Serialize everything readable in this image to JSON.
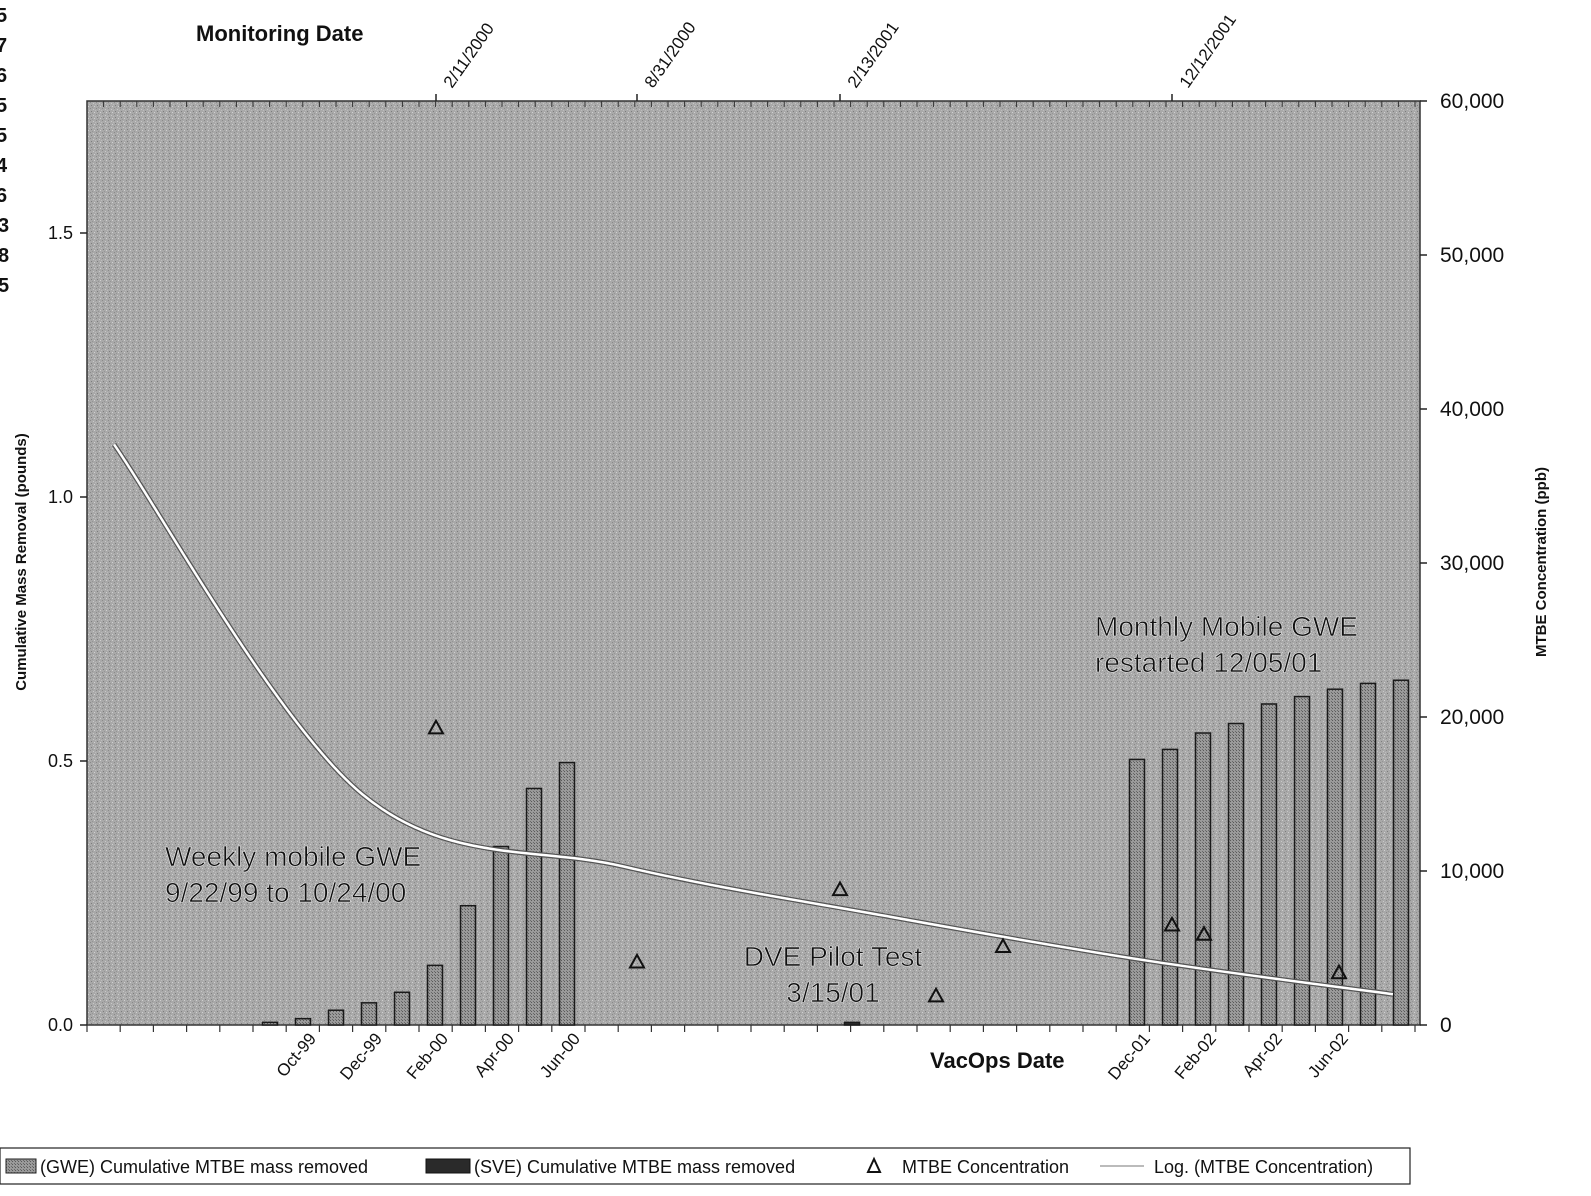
{
  "page": {
    "edge_fragments": [
      "5",
      "7",
      "6",
      "5",
      "5",
      "4",
      "6",
      "3",
      "8",
      "5"
    ]
  },
  "chart_data": {
    "type": "bar",
    "title": "",
    "ylabel": "Cumulative Mass Removal (pounds)",
    "y2label": "MTBE Concentration (ppb)",
    "ylim": [
      0,
      1.75
    ],
    "y2lim": [
      0,
      60000
    ],
    "yticks": [
      "0.0",
      "0.5",
      "1.0",
      "1.5"
    ],
    "y2ticks": [
      "0",
      "10,000",
      "20,000",
      "30,000",
      "40,000",
      "50,000",
      "60,000"
    ],
    "top_axis_label": "Monitoring Date",
    "top_axis_ticks": [
      "2/11/2000",
      "8/31/2000",
      "2/13/2001",
      "12/12/2001"
    ],
    "bottom_axis_label": "VacOps Date",
    "bottom_axis_ticks": [
      "Oct-99",
      "Dec-99",
      "Feb-00",
      "Apr-00",
      "Jun-00",
      "Dec-01",
      "Feb-02",
      "Apr-02",
      "Jun-02"
    ],
    "grid": false,
    "legend_position": "bottom",
    "legend": [
      {
        "label": "(GWE) Cumulative MTBE mass removed",
        "swatch": "hatched-bar"
      },
      {
        "label": "(SVE) Cumulative MTBE mass removed",
        "swatch": "dark-bar"
      },
      {
        "label": "MTBE Concentration",
        "swatch": "triangle"
      },
      {
        "label": "Log. (MTBE Concentration)",
        "swatch": "line"
      }
    ],
    "series": [
      {
        "name": "(GWE) Cumulative MTBE mass removed",
        "axis": "left",
        "x": [
          "Sep-99",
          "Oct-99",
          "Nov-99",
          "Dec-99",
          "Jan-00",
          "Feb-00",
          "Mar-00",
          "Apr-00",
          "May-00",
          "Jun-00",
          "Dec-01",
          "Jan-02",
          "Feb-02",
          "Mar-02",
          "Apr-02",
          "May-02",
          "Jun-02",
          "Jul-02",
          "Aug-02"
        ],
        "values": [
          0.005,
          0.012,
          0.028,
          0.042,
          0.062,
          0.113,
          0.226,
          0.338,
          0.448,
          0.497,
          0.503,
          0.522,
          0.553,
          0.571,
          0.608,
          0.622,
          0.636,
          0.647,
          0.653
        ]
      },
      {
        "name": "(SVE) Cumulative MTBE mass removed",
        "axis": "left",
        "x": [
          "Mar-01"
        ],
        "values": [
          0.005
        ]
      },
      {
        "name": "MTBE Concentration",
        "axis": "right",
        "x": [
          "2/11/2000",
          "8/31/2000",
          "2/13/2001",
          "3/15/2001",
          "6/1/2001",
          "12/12/2001",
          "1/15/2002",
          "6/1/2002"
        ],
        "values": [
          19300,
          4100,
          8800,
          1900,
          5100,
          6500,
          5900,
          3400
        ]
      },
      {
        "name": "Log. (MTBE Concentration)",
        "axis": "right",
        "kind": "line",
        "x_fraction": [
          0.01,
          0.2,
          0.4,
          0.6,
          0.8,
          0.99
        ],
        "values": [
          37700,
          15000,
          10300,
          7100,
          4200,
          2000
        ]
      }
    ],
    "annotations": [
      {
        "text_lines": [
          "Weekly mobile GWE",
          "9/22/99 to 10/24/00"
        ]
      },
      {
        "text_lines": [
          "DVE Pilot Test",
          "3/15/01"
        ]
      },
      {
        "text_lines": [
          "Monthly Mobile GWE",
          "restarted 12/05/01"
        ]
      }
    ]
  }
}
